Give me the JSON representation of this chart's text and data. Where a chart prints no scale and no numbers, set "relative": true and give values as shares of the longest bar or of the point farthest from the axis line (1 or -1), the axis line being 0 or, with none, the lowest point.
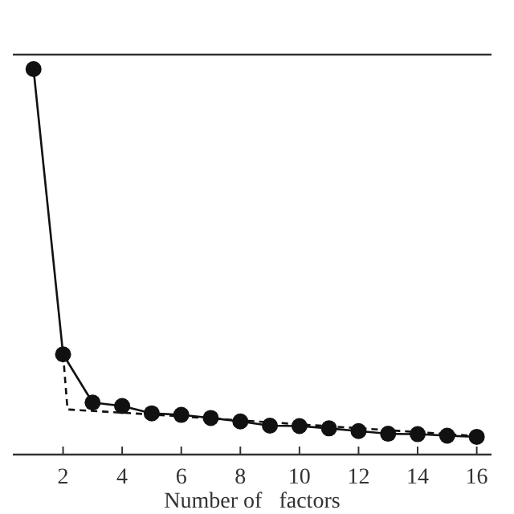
{
  "chart_data": {
    "type": "line",
    "relative": true,
    "xlabel": "Number of   factors",
    "xlim": [
      0.3,
      16.5
    ],
    "xticks": [
      2,
      4,
      6,
      8,
      10,
      12,
      14,
      16
    ],
    "grid": false,
    "series": [
      {
        "color": "#111111",
        "marker": "circle",
        "line_style": "solid",
        "x": [
          1,
          2,
          3,
          4,
          5,
          6,
          7,
          8,
          9,
          10,
          11,
          12,
          13,
          14,
          15,
          16
        ],
        "values": [
          1,
          0.26,
          0.135,
          0.126,
          0.107,
          0.103,
          0.095,
          0.086,
          0.075,
          0.074,
          0.068,
          0.061,
          0.054,
          0.053,
          0.049,
          0.046
        ]
      },
      {
        "color": "#111111",
        "marker": "none",
        "line_style": "dashed",
        "x": [
          2,
          2.15,
          5,
          16
        ],
        "values": [
          0.26,
          0.117,
          0.104,
          0.048
        ]
      }
    ]
  }
}
